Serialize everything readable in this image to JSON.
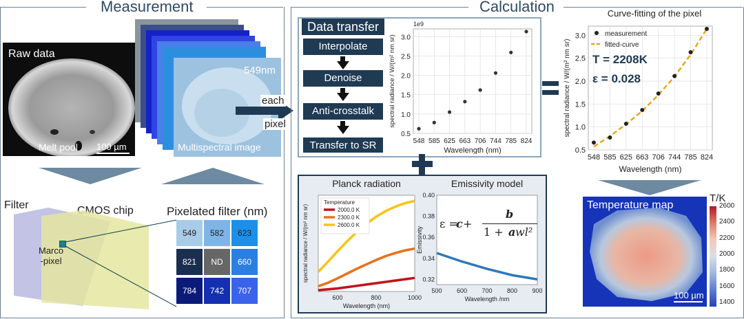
{
  "sections": {
    "measurement": "Measurement",
    "calculation": "Calculation"
  },
  "raw": {
    "title": "Raw data",
    "caption": "Melt pool",
    "scale": "100 µm"
  },
  "multispectral": {
    "wavelength": "549nm",
    "caption": "Multispectral image"
  },
  "arrow_text": {
    "line1": "each",
    "line2": "pixel"
  },
  "filter": {
    "filter_label": "Filter",
    "cmos_label": "CMOS chip",
    "macro_label": "Marco\n-pixel",
    "pixelated_title": "Pixelated filter (nm)",
    "cells": [
      "549",
      "582",
      "623",
      "821",
      "ND",
      "660",
      "784",
      "742",
      "707"
    ],
    "cell_colors": [
      "#a8cbe8",
      "#7fb4e6",
      "#1e8fe8",
      "#1a2f50",
      "#666666",
      "#2b7fe0",
      "#0b1b7a",
      "#1430b0",
      "#3a62ea"
    ]
  },
  "data_transfer": {
    "title": "Data transfer",
    "steps": [
      "Interpolate",
      "Denoise",
      "Anti-crosstalk",
      "Transfer to SR"
    ]
  },
  "chart_data": [
    {
      "type": "scatter",
      "id": "sr-scatter",
      "x": [
        "548",
        "585",
        "625",
        "663",
        "706",
        "744",
        "785",
        "824"
      ],
      "y": [
        0.62,
        0.78,
        1.05,
        1.32,
        1.62,
        2.06,
        2.59,
        3.13
      ],
      "ylim": [
        0.5,
        3.2
      ],
      "yticks": [
        "0.5",
        "1.0",
        "1.5",
        "2.0",
        "2.5",
        "3.0"
      ],
      "ytick_values": [
        0.5,
        1.0,
        1.5,
        2.0,
        2.5,
        3.0
      ],
      "ylabel": "spectral   radiance / W/(m² nm sr)",
      "xlabel": "Wavelength (nm)",
      "multiplier": "1e9",
      "grid": true
    },
    {
      "type": "scatter",
      "id": "fit",
      "title": "Curve-fitting of the pixel",
      "x": [
        "548",
        "585",
        "625",
        "663",
        "706",
        "744",
        "785",
        "824"
      ],
      "measurement": [
        0.66,
        0.77,
        1.07,
        1.37,
        1.73,
        2.11,
        2.63,
        3.14
      ],
      "fitted": [
        0.57,
        0.8,
        1.06,
        1.35,
        1.7,
        2.1,
        2.58,
        3.14
      ],
      "ylim": [
        0.5,
        3.2
      ],
      "yticks": [
        "0.5",
        "1.0",
        "1.5",
        "2.0",
        "2.5",
        "3.0"
      ],
      "ytick_values": [
        0.5,
        1.0,
        1.5,
        2.0,
        2.5,
        3.0
      ],
      "legend": [
        "measurement",
        "fitted-curve"
      ],
      "annotation_T": "T = 2208K",
      "annotation_eps": "ε = 0.028",
      "ylabel": "spectral   radiance / W/(m² nm sr)",
      "xlabel": "Wavelength (nm)",
      "grid": true,
      "legend_position": "top-left",
      "colors": {
        "measurement": "#222222",
        "fitted": "#e8a317"
      }
    },
    {
      "type": "line",
      "id": "planck",
      "title": "Planck radiation",
      "x": [
        500,
        550,
        600,
        650,
        700,
        750,
        800,
        850,
        900,
        950,
        1000
      ],
      "series": [
        {
          "name": "2000.0 K",
          "color": "#c0141c",
          "values": [
            0.03,
            0.05,
            0.07,
            0.1,
            0.13,
            0.16,
            0.19,
            0.22,
            0.25,
            0.28,
            0.31
          ]
        },
        {
          "name": "2300.0 K",
          "color": "#e8721c",
          "values": [
            0.12,
            0.2,
            0.3,
            0.41,
            0.52,
            0.62,
            0.72,
            0.81,
            0.88,
            0.94,
            0.98
          ]
        },
        {
          "name": "2600.0 K",
          "color": "#f5c518",
          "values": [
            0.45,
            0.68,
            0.92,
            1.15,
            1.36,
            1.55,
            1.71,
            1.84,
            1.94,
            2.02,
            2.07
          ]
        }
      ],
      "ymax": 2.2,
      "xticks": [
        "600",
        "800",
        "1000"
      ],
      "xtick_values": [
        600,
        800,
        1000
      ],
      "legend_title": "Temperature",
      "xlabel": "Wavelength (nm)",
      "ylabel": "spectral   radiance / W/(m² nm sr)"
    },
    {
      "type": "line",
      "id": "emissivity",
      "title": "Emissivity model",
      "x": [
        500,
        600,
        700,
        800,
        900
      ],
      "values": [
        0.345,
        0.337,
        0.33,
        0.324,
        0.32
      ],
      "ylim": [
        0.315,
        0.4
      ],
      "yticks": [
        "0.32",
        "0.34",
        "0.36",
        "0.38",
        "0.40"
      ],
      "ytick_values": [
        0.32,
        0.34,
        0.36,
        0.38,
        0.4
      ],
      "xticks": [
        "500",
        "600",
        "700",
        "800",
        "900"
      ],
      "xtick_values": [
        500,
        600,
        700,
        800,
        900
      ],
      "xlabel": "Wavelength /nm",
      "ylabel": "Emissivity",
      "color": "#2f78b7"
    }
  ],
  "equation": {
    "lhs": "ε = ",
    "c": "c",
    "plus": " + ",
    "num": "b",
    "den_1": "1 + ",
    "den_a": "a",
    "den_wl": " wl²"
  },
  "temp_map": {
    "title": "Temperature map",
    "unit": "T/K",
    "ticks": [
      "2600",
      "2400",
      "2200",
      "2000",
      "1800",
      "1600",
      "1400"
    ],
    "scale": "100 µm"
  }
}
